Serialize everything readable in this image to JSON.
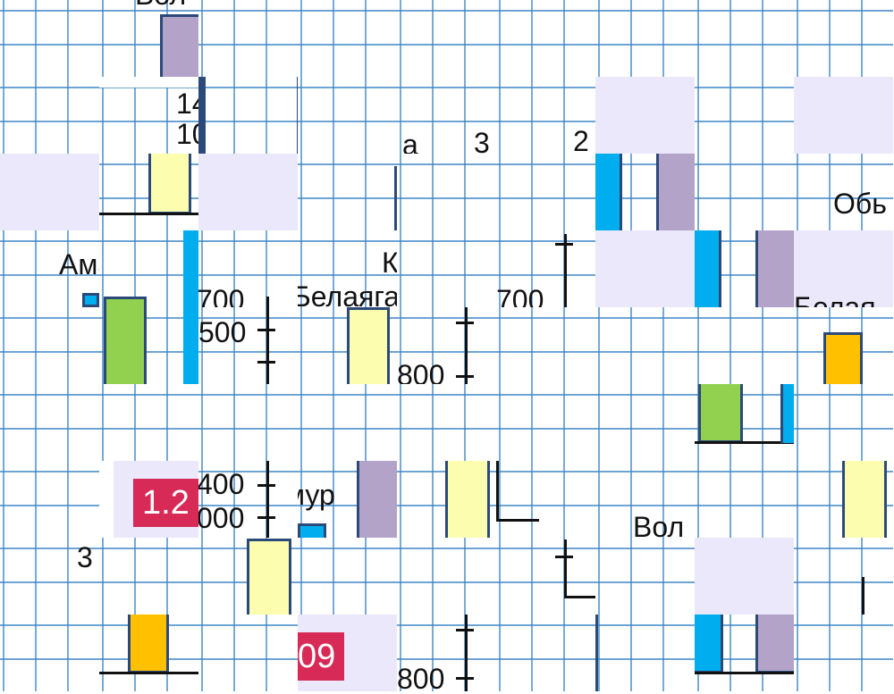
{
  "puzzle": {
    "colors": {
      "grid_line": "#3d86c6",
      "shade": "#ebe8fb",
      "bar_border": "#2b4a7a",
      "purple_bar": "#b3a3c8",
      "cyan_bar": "#00adef",
      "yellow_bar": "#fdfdb0",
      "green_bar": "#92d050",
      "orange_bar": "#ffc000",
      "badge": "#d82a56"
    },
    "labels": {
      "t0": "Вол",
      "t1a": "14",
      "t1b": "10",
      "t2": "а",
      "t3": "3",
      "t4": "2",
      "t5": "Обь",
      "t6": "Амама",
      "t7": "К",
      "t8": "1Белаяга",
      "t9": "700",
      "t10": "700",
      "t11": "Белая",
      "t12": "500",
      "t13": "800",
      "t14": "1.2",
      "t15": "400",
      "t16": "000",
      "t17": "мур",
      "t18": "Вол",
      "t19": "3",
      "t20": "09",
      "t21": "800"
    }
  }
}
